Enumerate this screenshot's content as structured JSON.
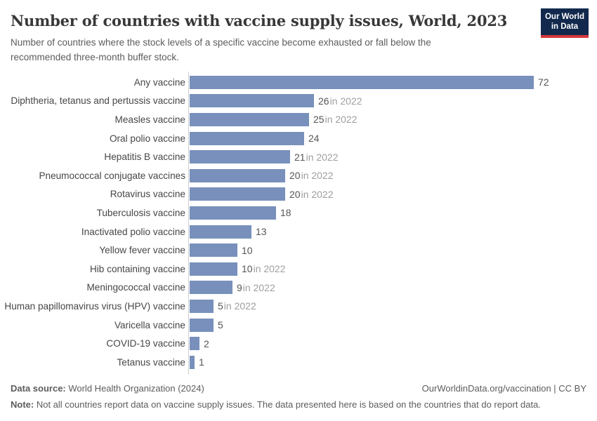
{
  "header": {
    "title": "Number of countries with vaccine supply issues, World, 2023",
    "subtitle_line1": "Number of countries where the stock levels of a specific vaccine become exhausted or fall below the",
    "subtitle_line2": "recommended three-month buffer stock.",
    "logo": {
      "line1": "Our World",
      "line2": "in Data",
      "bg_color": "#12294d",
      "accent_color": "#d4373e"
    }
  },
  "chart_data": {
    "type": "bar",
    "orientation": "horizontal",
    "title": "Number of countries with vaccine supply issues, World, 2023",
    "xlim": [
      0,
      72
    ],
    "grid": false,
    "legend": false,
    "bar_color": "#7890bb",
    "categories": [
      "Any vaccine",
      "Diphtheria, tetanus and pertussis vaccine",
      "Measles vaccine",
      "Oral polio vaccine",
      "Hepatitis B vaccine",
      "Pneumococcal conjugate vaccines",
      "Rotavirus vaccine",
      "Tuberculosis vaccine",
      "Inactivated polio vaccine",
      "Yellow fever vaccine",
      "Hib containing vaccine",
      "Meningococcal vaccine",
      "Human papillomavirus virus (HPV) vaccine",
      "Varicella vaccine",
      "COVID-19 vaccine",
      "Tetanus vaccine"
    ],
    "values": [
      72,
      26,
      25,
      24,
      21,
      20,
      20,
      18,
      13,
      10,
      10,
      9,
      5,
      5,
      2,
      1
    ],
    "value_annotations": [
      "",
      "in 2022",
      "in 2022",
      "",
      "in 2022",
      "in 2022",
      "in 2022",
      "",
      "",
      "",
      "in 2022",
      "in 2022",
      "in 2022",
      "",
      "",
      ""
    ]
  },
  "footer": {
    "source_label": "Data source:",
    "source_text": " World Health Organization (2024)",
    "credit": "OurWorldinData.org/vaccination | CC BY",
    "note_label": "Note:",
    "note_text": " Not all countries report data on vaccine supply issues. The data presented here is based on the countries that do report data."
  }
}
